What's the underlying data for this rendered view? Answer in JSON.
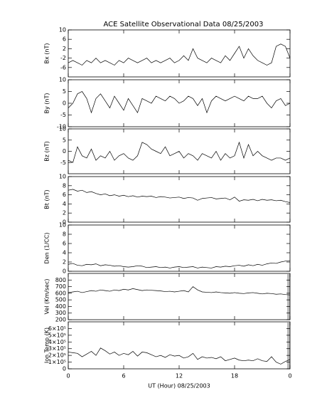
{
  "chart_data": [
    {
      "type": "line",
      "title": "ACE Satellite Observational Data  08/25/2003",
      "ylabel": "Bx (nT)",
      "color": "#000000",
      "x": [
        0,
        0.5,
        1,
        1.5,
        2,
        2.5,
        3,
        3.5,
        4,
        4.5,
        5,
        5.5,
        6,
        6.5,
        7,
        7.5,
        8,
        8.5,
        9,
        9.5,
        10,
        10.5,
        11,
        11.5,
        12,
        12.5,
        13,
        13.5,
        14,
        14.5,
        15,
        15.5,
        16,
        16.5,
        17,
        17.5,
        18,
        18.5,
        19,
        19.5,
        20,
        20.5,
        21,
        21.5,
        22,
        22.5,
        23,
        23.5,
        24
      ],
      "values": [
        -4,
        -3,
        -4,
        -5,
        -3,
        -4,
        -2,
        -4,
        -3,
        -4,
        -5,
        -3,
        -4,
        -2,
        -3,
        -4,
        -3,
        -2,
        -4,
        -3,
        -4,
        -3,
        -2,
        -4,
        -3,
        -1,
        -3,
        2,
        -2,
        -3,
        -4,
        -2,
        -3,
        -4,
        -1,
        -3,
        0,
        3,
        -2,
        2,
        -1,
        -3,
        -4,
        -5,
        -4,
        3,
        4,
        3,
        -2
      ],
      "ylim": [
        -10,
        10
      ],
      "yticks": [
        -6,
        -2,
        2,
        6,
        10
      ]
    },
    {
      "type": "line",
      "ylabel": "By (nT)",
      "color": "#000000",
      "x": [
        0,
        0.5,
        1,
        1.5,
        2,
        2.5,
        3,
        3.5,
        4,
        4.5,
        5,
        5.5,
        6,
        6.5,
        7,
        7.5,
        8,
        8.5,
        9,
        9.5,
        10,
        10.5,
        11,
        11.5,
        12,
        12.5,
        13,
        13.5,
        14,
        14.5,
        15,
        15.5,
        16,
        16.5,
        17,
        17.5,
        18,
        18.5,
        19,
        19.5,
        20,
        20.5,
        21,
        21.5,
        22,
        22.5,
        23,
        23.5,
        24
      ],
      "values": [
        -2,
        0,
        4,
        5,
        2,
        -4,
        2,
        4,
        1,
        -2,
        3,
        0,
        -3,
        2,
        -1,
        -4,
        2,
        1,
        0,
        3,
        2,
        1,
        3,
        2,
        0,
        1,
        3,
        2,
        -1,
        2,
        -4,
        1,
        3,
        2,
        1,
        2,
        3,
        2,
        1,
        3,
        2,
        2,
        3,
        0,
        -2,
        1,
        2,
        -1,
        0
      ],
      "ylim": [
        -10,
        10
      ],
      "yticks": [
        -10,
        -5,
        0,
        5,
        10
      ]
    },
    {
      "type": "line",
      "ylabel": "Bz (nT)",
      "color": "#000000",
      "x": [
        0,
        0.5,
        1,
        1.5,
        2,
        2.5,
        3,
        3.5,
        4,
        4.5,
        5,
        5.5,
        6,
        6.5,
        7,
        7.5,
        8,
        8.5,
        9,
        9.5,
        10,
        10.5,
        11,
        11.5,
        12,
        12.5,
        13,
        13.5,
        14,
        14.5,
        15,
        15.5,
        16,
        16.5,
        17,
        17.5,
        18,
        18.5,
        19,
        19.5,
        20,
        20.5,
        21,
        21.5,
        22,
        22.5,
        23,
        23.5,
        24
      ],
      "values": [
        -4,
        -5,
        2,
        -2,
        -3,
        1,
        -4,
        -2,
        -3,
        0,
        -4,
        -2,
        -1,
        -3,
        -4,
        -2,
        4,
        3,
        1,
        0,
        -1,
        2,
        -2,
        -1,
        0,
        -3,
        -1,
        -2,
        -4,
        -1,
        -2,
        -3,
        0,
        -4,
        -1,
        -3,
        -2,
        4,
        -3,
        3,
        -2,
        0,
        -2,
        -3,
        -4,
        -3,
        -3,
        -4,
        -3
      ],
      "ylim": [
        -10,
        10
      ],
      "yticks": [
        -5,
        0,
        5,
        10
      ]
    },
    {
      "type": "line",
      "ylabel": "Bt (nT)",
      "color": "#000000",
      "x": [
        0,
        0.5,
        1,
        1.5,
        2,
        2.5,
        3,
        3.5,
        4,
        4.5,
        5,
        5.5,
        6,
        6.5,
        7,
        7.5,
        8,
        8.5,
        9,
        9.5,
        10,
        10.5,
        11,
        11.5,
        12,
        12.5,
        13,
        13.5,
        14,
        14.5,
        15,
        15.5,
        16,
        16.5,
        17,
        17.5,
        18,
        18.5,
        19,
        19.5,
        20,
        20.5,
        21,
        21.5,
        22,
        22.5,
        23,
        23.5,
        24
      ],
      "values": [
        7,
        7.2,
        6.8,
        7,
        6.5,
        6.7,
        6.3,
        6,
        6.2,
        5.8,
        6,
        5.7,
        5.9,
        5.6,
        5.8,
        5.5,
        5.7,
        5.6,
        5.7,
        5.4,
        5.6,
        5.5,
        5.3,
        5.4,
        5.5,
        5.2,
        5.4,
        5.3,
        4.8,
        5.2,
        5.3,
        5.4,
        5.1,
        5.2,
        5.3,
        4.9,
        5.5,
        4.6,
        4.9,
        4.8,
        5,
        4.7,
        5,
        4.8,
        4.9,
        4.7,
        4.8,
        4.5,
        4.3
      ],
      "ylim": [
        0,
        10
      ],
      "yticks": [
        0,
        2,
        4,
        6,
        8,
        10
      ]
    },
    {
      "type": "line",
      "ylabel": "Den (1/CC)",
      "color": "#000000",
      "x": [
        0,
        0.5,
        1,
        1.5,
        2,
        2.5,
        3,
        3.5,
        4,
        4.5,
        5,
        5.5,
        6,
        6.5,
        7,
        7.5,
        8,
        8.5,
        9,
        9.5,
        10,
        10.5,
        11,
        11.5,
        12,
        12.5,
        13,
        13.5,
        14,
        14.5,
        15,
        15.5,
        16,
        16.5,
        17,
        17.5,
        18,
        18.5,
        19,
        19.5,
        20,
        20.5,
        21,
        21.5,
        22,
        22.5,
        23,
        23.5,
        24
      ],
      "values": [
        1.5,
        1.7,
        1.3,
        1.2,
        1.5,
        1.4,
        1.6,
        1.2,
        1.4,
        1.3,
        1.1,
        1.2,
        1,
        0.9,
        1,
        1.2,
        1.1,
        0.8,
        0.9,
        1,
        0.8,
        0.9,
        0.7,
        0.9,
        1,
        0.8,
        0.9,
        1,
        0.7,
        0.9,
        0.8,
        0.7,
        1,
        0.9,
        1.1,
        1,
        1.2,
        1.3,
        1.1,
        1.4,
        1.2,
        1.5,
        1.3,
        1.6,
        1.8,
        1.7,
        2,
        2.2,
        2.3
      ],
      "ylim": [
        0,
        10
      ],
      "yticks": [
        0,
        2,
        4,
        6,
        8,
        10
      ]
    },
    {
      "type": "line",
      "ylabel": "Vel (Km/sec)",
      "color": "#000000",
      "x": [
        0,
        0.5,
        1,
        1.5,
        2,
        2.5,
        3,
        3.5,
        4,
        4.5,
        5,
        5.5,
        6,
        6.5,
        7,
        7.5,
        8,
        8.5,
        9,
        9.5,
        10,
        10.5,
        11,
        11.5,
        12,
        12.5,
        13,
        13.5,
        14,
        14.5,
        15,
        15.5,
        16,
        16.5,
        17,
        17.5,
        18,
        18.5,
        19,
        19.5,
        20,
        20.5,
        21,
        21.5,
        22,
        22.5,
        23,
        23.5,
        24
      ],
      "values": [
        610,
        620,
        630,
        610,
        625,
        640,
        630,
        650,
        640,
        630,
        650,
        640,
        660,
        650,
        670,
        655,
        640,
        650,
        645,
        640,
        635,
        625,
        630,
        620,
        630,
        640,
        620,
        700,
        650,
        620,
        615,
        610,
        620,
        610,
        605,
        600,
        610,
        600,
        595,
        605,
        610,
        600,
        590,
        600,
        595,
        585,
        590,
        580,
        575
      ],
      "ylim": [
        200,
        900
      ],
      "yticks": [
        200,
        300,
        400,
        500,
        600,
        700,
        800
      ]
    },
    {
      "type": "line",
      "ylabel": "Ion Temp (K)",
      "color": "#000000",
      "x": [
        0,
        0.5,
        1,
        1.5,
        2,
        2.5,
        3,
        3.5,
        4,
        4.5,
        5,
        5.5,
        6,
        6.5,
        7,
        7.5,
        8,
        8.5,
        9,
        9.5,
        10,
        10.5,
        11,
        11.5,
        12,
        12.5,
        13,
        13.5,
        14,
        14.5,
        15,
        15.5,
        16,
        16.5,
        17,
        17.5,
        18,
        18.5,
        19,
        19.5,
        20,
        20.5,
        21,
        21.5,
        22,
        22.5,
        23,
        23.5,
        24
      ],
      "values": [
        250000,
        240000,
        230000,
        180000,
        220000,
        260000,
        200000,
        310000,
        270000,
        220000,
        250000,
        200000,
        230000,
        210000,
        260000,
        190000,
        250000,
        240000,
        210000,
        180000,
        200000,
        170000,
        210000,
        190000,
        200000,
        160000,
        180000,
        230000,
        140000,
        180000,
        160000,
        170000,
        150000,
        180000,
        120000,
        140000,
        160000,
        130000,
        120000,
        130000,
        120000,
        150000,
        120000,
        110000,
        180000,
        100000,
        70000,
        110000,
        140000
      ],
      "ylim": [
        0,
        700000
      ],
      "yticks": [
        0,
        {
          "value": 100000,
          "label": "1×10⁵"
        },
        {
          "value": 200000,
          "label": "2×10⁵"
        },
        {
          "value": 300000,
          "label": "3×10⁵"
        },
        {
          "value": 400000,
          "label": "4×10⁵"
        },
        {
          "value": 500000,
          "label": "5×10⁵"
        },
        {
          "value": 600000,
          "label": "6×10⁵"
        }
      ],
      "xlabel": "UT (Hour)  08/25/2003",
      "xlim": [
        0,
        24
      ],
      "xticks": [
        0,
        6,
        12,
        18,
        {
          "value": 24,
          "label": "0"
        }
      ]
    }
  ]
}
